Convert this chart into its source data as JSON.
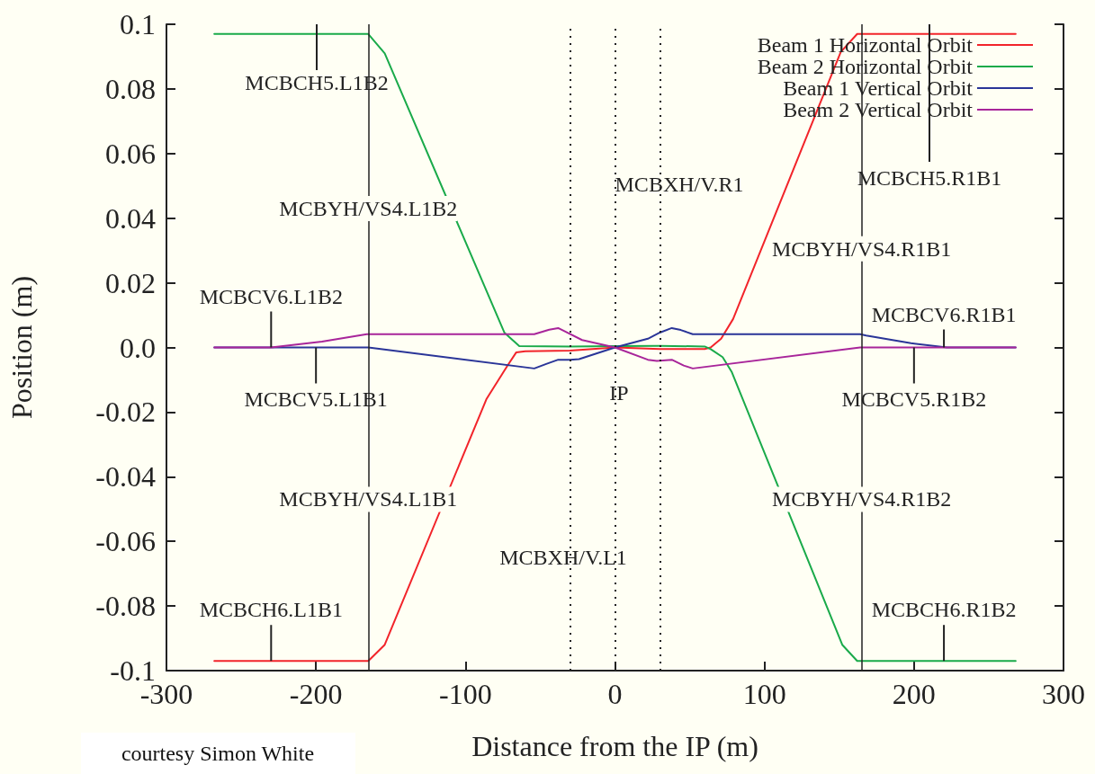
{
  "chart_data": {
    "type": "line",
    "xlabel": "Distance from the IP (m)",
    "ylabel": "Position (m)",
    "xlim": [
      -300,
      300
    ],
    "xticks": [
      -300,
      -200,
      -100,
      0,
      100,
      200,
      300
    ],
    "ylim": [
      -0.1,
      0.1
    ],
    "yticks": [
      -0.1,
      -0.08,
      -0.06,
      -0.04,
      -0.02,
      {
        "value": 0,
        "label": "0.0"
      },
      0.02,
      0.04,
      0.06,
      0.08,
      0.1
    ],
    "grid": false,
    "legend": "top right",
    "line_style": "solid",
    "marker": "none",
    "series": [
      {
        "name": "Beam 1 Horizontal Orbit",
        "color": "#f2242a",
        "x": [
          -268,
          -165,
          -154,
          -86,
          -72,
          -66,
          -60,
          -30,
          0,
          30,
          60,
          64,
          71,
          79,
          151,
          162,
          268
        ],
        "values": [
          -0.097,
          -0.097,
          -0.092,
          -0.016,
          -0.0057,
          -0.0015,
          -0.0012,
          -0.001,
          0,
          -0.0005,
          -0.0005,
          0,
          0.0027,
          0.0088,
          0.0914,
          0.097,
          0.097
        ]
      },
      {
        "name": "Beam 2 Horizontal Orbit",
        "color": "#1aaa4a",
        "x": [
          -268,
          -165,
          -154,
          -74,
          -64,
          -30,
          0,
          30,
          60,
          64,
          72,
          78,
          152,
          162,
          268
        ],
        "values": [
          0.097,
          0.097,
          0.091,
          0.0046,
          0.0004,
          0.0003,
          0.0004,
          0.0005,
          0.0003,
          -0.0005,
          -0.003,
          -0.0075,
          -0.092,
          -0.097,
          -0.097
        ]
      },
      {
        "name": "Beam 1 Vertical Orbit",
        "color": "#2a3598",
        "x": [
          -268,
          -165,
          -54,
          -46,
          -38,
          -30,
          -24,
          0,
          22,
          30,
          38,
          44,
          52,
          164,
          168,
          198,
          222,
          268
        ],
        "values": [
          0,
          0,
          -0.0065,
          -0.0051,
          -0.0038,
          -0.0038,
          -0.0036,
          0,
          0.0027,
          0.0046,
          0.006,
          0.0054,
          0.0041,
          0.0041,
          0.0037,
          0.0013,
          0,
          0
        ]
      },
      {
        "name": "Beam 2 Vertical Orbit",
        "color": "#a8259a",
        "x": [
          -268,
          -230,
          -196,
          -166,
          -54,
          -44,
          -38,
          -32,
          -22,
          0,
          22,
          28,
          38,
          46,
          52,
          164,
          268
        ],
        "values": [
          0,
          0,
          0.0018,
          0.0041,
          0.0041,
          0.0055,
          0.006,
          0.0046,
          0.0023,
          0,
          -0.0038,
          -0.0042,
          -0.0038,
          -0.0056,
          -0.0065,
          0,
          0
        ]
      }
    ],
    "ref_lines": [
      {
        "axis": "x",
        "value": -165,
        "label": null,
        "line_style": "solid",
        "color": "#222222"
      },
      {
        "axis": "x",
        "value": 165,
        "label": null,
        "line_style": "solid",
        "color": "#222222"
      },
      {
        "axis": "x",
        "value": -30,
        "label": null,
        "line_style": "dotted",
        "color": "#222222"
      },
      {
        "axis": "x",
        "value": 0,
        "label": null,
        "line_style": "dotted",
        "color": "#222222"
      },
      {
        "axis": "x",
        "value": 30,
        "label": null,
        "line_style": "dotted",
        "color": "#222222"
      }
    ],
    "annotations": [
      "MCBCH5.L1B2",
      {
        "text": "MCBYH/VS4.L1B2",
        "x": -165,
        "y": 0.043
      },
      {
        "text": "MCBCV6.L1B2",
        "x": -230,
        "y": 0
      },
      {
        "text": "MCBCV5.L1B1",
        "x": -200,
        "y": 0
      },
      {
        "text": "MCBYH/VS4.L1B1",
        "x": -165,
        "y": -0.047
      },
      {
        "text": "MCBCH6.L1B1",
        "x": -230,
        "y": -0.097
      },
      "MCBXH/V.R1",
      "IP",
      "MCBXH/V.L1",
      "MCBCH5.R1B1",
      {
        "text": "MCBYH/VS4.R1B1",
        "x": 165,
        "y": 0.0305
      },
      {
        "text": "MCBCV6.R1B1",
        "x": 220,
        "y": 0
      },
      {
        "text": "MCBCV5.R1B2",
        "x": 200,
        "y": 0
      },
      {
        "text": "MCBYH/VS4.R1B2",
        "x": 165,
        "y": -0.047
      },
      {
        "text": "MCBCH6.R1B2",
        "x": 220,
        "y": -0.097
      },
      "courtesy Simon White"
    ]
  }
}
